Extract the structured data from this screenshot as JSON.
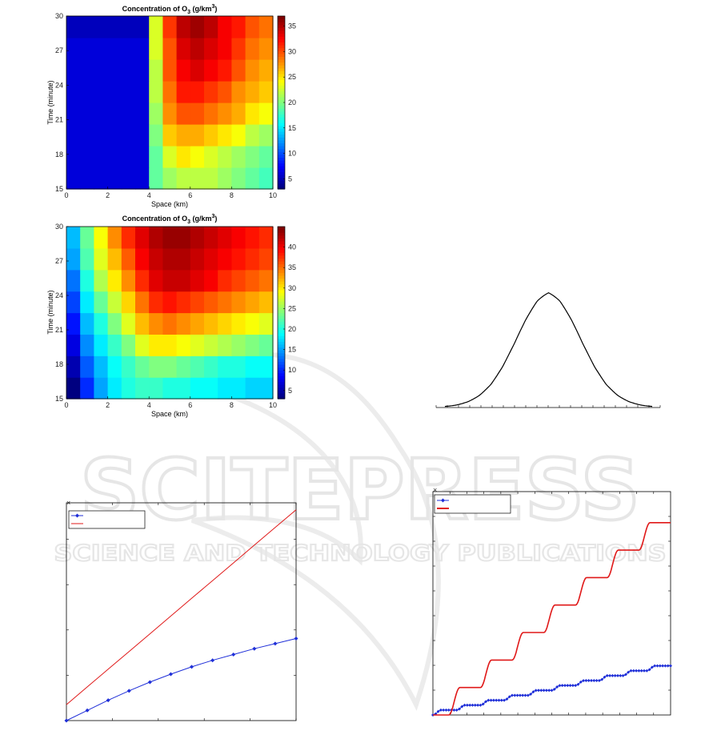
{
  "chart_data": [
    {
      "type": "heatmap",
      "title": "Concentration of O",
      "title_sub": "3",
      "title_unit": " (g/km",
      "title_sup": "3",
      "title_end": ")",
      "xlabel": "Space (km)",
      "ylabel": "Time (minute)",
      "xlim": [
        0,
        10
      ],
      "ylim": [
        15,
        30
      ],
      "xticks": [
        "0",
        "2",
        "4",
        "6",
        "8",
        "10"
      ],
      "yticks": [
        "15",
        "18",
        "21",
        "24",
        "27",
        "30"
      ],
      "colorbar": {
        "range": [
          3,
          37
        ],
        "ticks": [
          "5",
          "10",
          "15",
          "20",
          "25",
          "30",
          "35"
        ]
      },
      "colormap": "jet",
      "grid": [
        [
          6,
          6,
          6,
          6,
          6,
          6,
          19,
          21,
          22,
          22,
          22,
          21,
          20,
          19,
          18
        ],
        [
          6,
          6,
          6,
          6,
          6,
          6,
          19,
          23,
          25,
          24,
          23,
          22,
          21,
          20,
          19
        ],
        [
          6,
          6,
          6,
          6,
          6,
          6,
          20,
          26,
          27,
          27,
          26,
          25,
          24,
          22,
          21
        ],
        [
          6,
          6,
          6,
          6,
          6,
          6,
          21,
          28,
          30,
          30,
          29,
          28,
          27,
          25,
          24
        ],
        [
          6,
          6,
          6,
          6,
          6,
          6,
          22,
          29,
          32,
          32,
          31,
          30,
          28,
          27,
          26
        ],
        [
          6,
          6,
          6,
          6,
          6,
          6,
          22,
          30,
          33,
          34,
          33,
          32,
          30,
          28,
          27
        ],
        [
          6,
          6,
          6,
          6,
          6,
          6,
          23,
          30,
          34,
          35,
          34,
          33,
          31,
          29,
          28
        ],
        [
          5,
          5,
          5,
          5,
          5,
          5,
          23,
          31,
          35,
          36,
          35,
          33,
          32,
          30,
          29
        ]
      ]
    },
    {
      "type": "heatmap",
      "title": "Concentration of O",
      "title_sub": "3",
      "title_unit": " (g/km",
      "title_sup": "3",
      "title_end": ")",
      "xlabel": "Space (km)",
      "ylabel": "Time (minute)",
      "xlim": [
        0,
        10
      ],
      "ylim": [
        15,
        30
      ],
      "xticks": [
        "0",
        "2",
        "4",
        "6",
        "8",
        "10"
      ],
      "yticks": [
        "15",
        "18",
        "21",
        "24",
        "27",
        "30"
      ],
      "colorbar": {
        "range": [
          3,
          45
        ],
        "ticks": [
          "5",
          "10",
          "15",
          "20",
          "25",
          "30",
          "35",
          "40"
        ]
      },
      "colormap": "jet",
      "grid": [
        [
          3,
          10,
          15,
          18,
          20,
          21,
          21,
          20,
          20,
          19,
          19,
          18,
          18,
          17,
          17
        ],
        [
          5,
          12,
          16,
          19,
          21,
          23,
          24,
          24,
          23,
          22,
          21,
          20,
          20,
          19,
          19
        ],
        [
          7,
          14,
          18,
          21,
          24,
          28,
          30,
          30,
          29,
          28,
          27,
          26,
          25,
          24,
          23
        ],
        [
          9,
          16,
          20,
          24,
          28,
          32,
          34,
          35,
          34,
          33,
          32,
          31,
          30,
          29,
          28
        ],
        [
          11,
          18,
          23,
          27,
          31,
          35,
          38,
          39,
          38,
          37,
          36,
          35,
          34,
          33,
          32
        ],
        [
          13,
          20,
          26,
          30,
          34,
          38,
          41,
          42,
          42,
          41,
          40,
          38,
          37,
          36,
          35
        ],
        [
          15,
          22,
          28,
          32,
          36,
          40,
          42,
          43,
          43,
          42,
          41,
          40,
          39,
          38,
          37
        ],
        [
          16,
          23,
          29,
          34,
          38,
          41,
          43,
          44,
          44,
          43,
          42,
          41,
          40,
          39,
          38
        ]
      ]
    },
    {
      "type": "line",
      "title": "",
      "xlabel": "",
      "ylabel": "",
      "exponent_mark": "×",
      "legend": {
        "placement": "top-left"
      },
      "series": [
        {
          "color": "#1f2fd8",
          "marker": "diamond",
          "values": [
            0,
            0.7,
            1.4,
            2.05,
            2.65,
            3.2,
            3.7,
            4.15,
            4.55,
            4.95,
            5.3,
            5.65
          ]
        },
        {
          "color": "#e01818",
          "marker": "none",
          "values": [
            1.1,
            2.32,
            3.54,
            4.76,
            5.98,
            7.2,
            8.42,
            9.64,
            10.86,
            12.08,
            13.3,
            14.52
          ]
        }
      ],
      "ylim": [
        0,
        15
      ],
      "xlim": [
        0,
        11
      ]
    },
    {
      "type": "line",
      "title": "",
      "xlabel": "",
      "ylabel": "",
      "shape": "bell",
      "values": [
        0.0,
        0.0,
        0.01,
        0.04,
        0.11,
        0.25,
        0.46,
        0.7,
        0.9,
        1.0,
        0.9,
        0.7,
        0.46,
        0.25,
        0.11,
        0.04,
        0.01,
        0.0,
        0.0
      ],
      "ylim": [
        0,
        1.15
      ]
    },
    {
      "type": "line",
      "title": "",
      "xlabel": "",
      "ylabel": "",
      "exponent_mark": "×",
      "legend": {
        "placement": "top-left"
      },
      "xlim": [
        0,
        30
      ],
      "ylim": [
        0,
        10
      ],
      "series": [
        {
          "color": "#1f2fd8",
          "marker": "diamond",
          "step_height": 0.22,
          "steps": 10,
          "period": 3,
          "start": 0
        },
        {
          "color": "#e01818",
          "marker": "none",
          "step_height": 1.23,
          "steps": 7,
          "period": 4,
          "start": 2
        }
      ]
    }
  ],
  "watermark": {
    "line1": "SCITEPRESS",
    "line2": "SCIENCE AND TECHNOLOGY PUBLICATIONS"
  }
}
